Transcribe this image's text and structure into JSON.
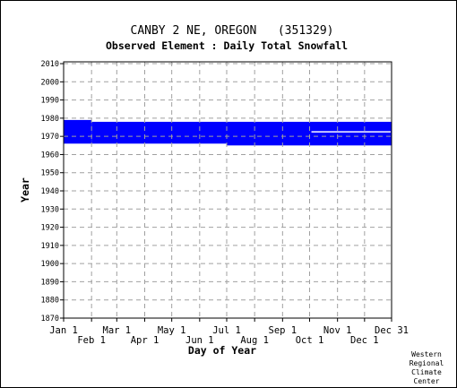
{
  "chart_data": {
    "type": "heatmap",
    "title": "CANBY 2 NE, OREGON   (351329)",
    "subtitle": "Observed Element : Daily Total Snowfall",
    "xlabel": "Day of Year",
    "ylabel": "Year",
    "credit": "Western Regional Climate Center",
    "credit_lines": [
      "Western",
      "Regional",
      "Climate",
      "Center"
    ],
    "x_ticks_upper": [
      {
        "label": "Jan 1",
        "day": 1
      },
      {
        "label": "Mar 1",
        "day": 60
      },
      {
        "label": "May 1",
        "day": 121
      },
      {
        "label": "Jul 1",
        "day": 182
      },
      {
        "label": "Sep 1",
        "day": 244
      },
      {
        "label": "Nov 1",
        "day": 305
      },
      {
        "label": "Dec 31",
        "day": 365
      }
    ],
    "x_ticks_lower": [
      {
        "label": "Feb 1",
        "day": 32
      },
      {
        "label": "Apr 1",
        "day": 91
      },
      {
        "label": "Jun 1",
        "day": 152
      },
      {
        "label": "Aug 1",
        "day": 213
      },
      {
        "label": "Oct 1",
        "day": 274
      },
      {
        "label": "Dec 1",
        "day": 335
      }
    ],
    "xlim": [
      1,
      365
    ],
    "ylim": [
      1870,
      2011
    ],
    "y_ticks": [
      1870,
      1880,
      1890,
      1900,
      1910,
      1920,
      1930,
      1940,
      1950,
      1960,
      1970,
      1980,
      1990,
      2000,
      2010
    ],
    "grid": true,
    "data_color": "#0000ff",
    "coverage": [
      {
        "day_start": 1,
        "day_end": 32,
        "year_start": 1966,
        "year_end": 1979
      },
      {
        "day_start": 32,
        "day_end": 182,
        "year_start": 1966,
        "year_end": 1978
      },
      {
        "day_start": 182,
        "day_end": 365,
        "year_start": 1965,
        "year_end": 1978
      }
    ],
    "gaps": [
      {
        "day_start": 276,
        "day_end": 365,
        "year": 1972.5
      }
    ]
  }
}
